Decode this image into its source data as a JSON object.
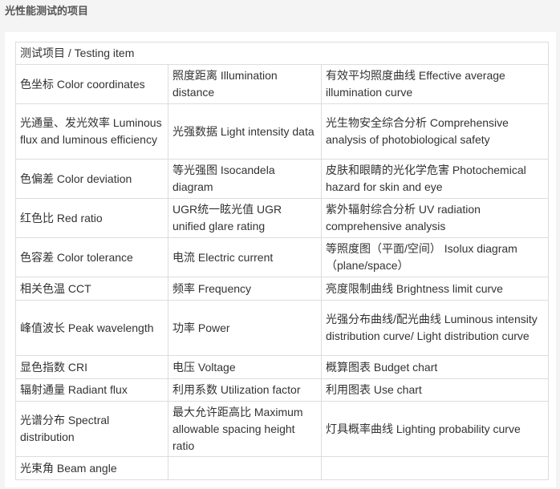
{
  "title": "光性能测试的项目",
  "table": {
    "header": "测试项目 / Testing item",
    "rows": [
      [
        "色坐标 Color coordinates",
        "照度距离 Illumination distance",
        "有效平均照度曲线 Effective average illumination curve"
      ],
      [
        "光通量、发光效率 Luminous flux and luminous efficiency",
        "光强数据 Light intensity data",
        "光生物安全综合分析 Comprehensive analysis of photobiological safety"
      ],
      [
        "色偏差 Color deviation",
        "等光强图 Isocandela diagram",
        "皮肤和眼睛的光化学危害 Photochemical hazard for skin and eye"
      ],
      [
        "红色比 Red ratio",
        "UGR统一眩光值 UGR unified glare rating",
        "紫外辐射综合分析 UV radiation comprehensive analysis"
      ],
      [
        "色容差 Color tolerance",
        "电流 Electric current",
        "等照度图（平面/空间） Isolux diagram（plane/space）"
      ],
      [
        "相关色温 CCT",
        "频率 Frequency",
        "亮度限制曲线 Brightness limit curve"
      ],
      [
        "峰值波长 Peak wavelength",
        "功率 Power",
        "光强分布曲线/配光曲线 Luminous intensity distribution curve/ Light distribution curve"
      ],
      [
        "显色指数 CRI",
        "电压 Voltage",
        "概算图表 Budget chart"
      ],
      [
        "辐射通量 Radiant flux",
        "利用系数 Utilization factor",
        "利用图表 Use chart"
      ],
      [
        "光谱分布 Spectral distribution",
        "最大允许距高比 Maximum allowable spacing height ratio",
        "灯具概率曲线 Lighting probability curve"
      ],
      [
        "光束角 Beam angle",
        "",
        ""
      ]
    ]
  }
}
